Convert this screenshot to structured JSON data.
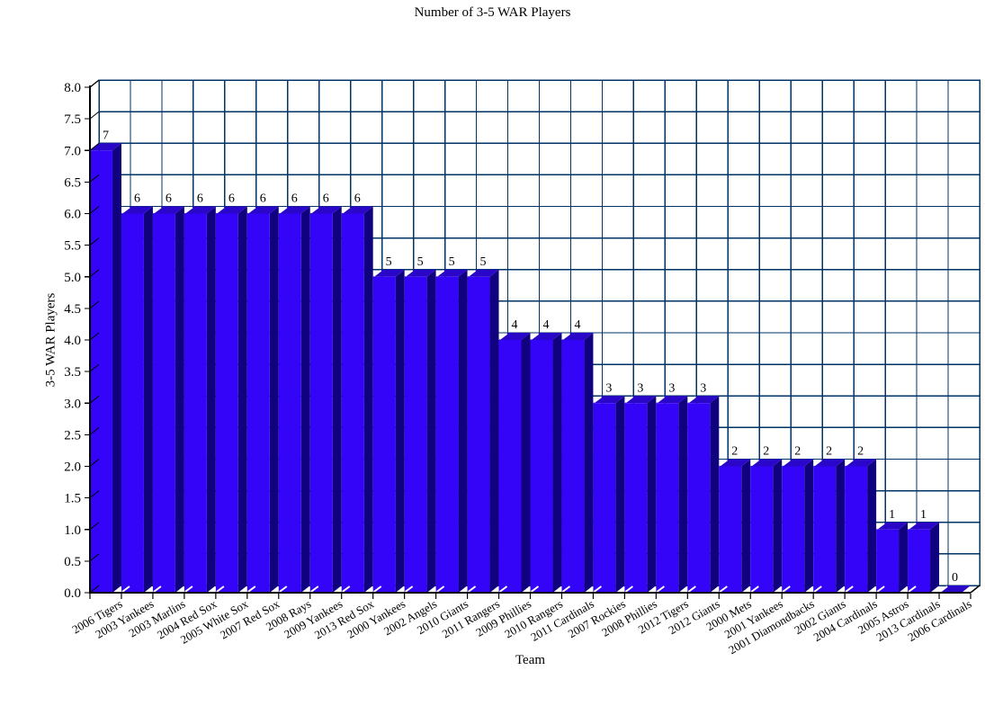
{
  "chart_data": {
    "type": "bar",
    "style": "3d-bar",
    "title": "Number of 3-5 WAR Players",
    "xlabel": "Team",
    "ylabel": "3-5 WAR Players",
    "ylim": [
      0.0,
      8.0
    ],
    "ytick_step": 0.5,
    "grid": true,
    "legend": "none",
    "categories": [
      "2006 Tigers",
      "2003 Yankees",
      "2003 Marlins",
      "2004 Red Sox",
      "2005 White Sox",
      "2007 Red Sox",
      "2008 Rays",
      "2009 Yankees",
      "2013 Red Sox",
      "2000 Yankees",
      "2002 Angels",
      "2010 Giants",
      "2011 Rangers",
      "2009 Phillies",
      "2010 Rangers",
      "2011 Cardinals",
      "2007 Rockies",
      "2008 Phillies",
      "2012 Tigers",
      "2012 Giants",
      "2000 Mets",
      "2001 Yankees",
      "2001 Diamondbacks",
      "2002 Giants",
      "2004 Cardinals",
      "2005 Astros",
      "2013 Cardinals",
      "2006 Cardinals"
    ],
    "values": [
      7,
      6,
      6,
      6,
      6,
      6,
      6,
      6,
      6,
      5,
      5,
      5,
      5,
      4,
      4,
      4,
      3,
      3,
      3,
      3,
      2,
      2,
      2,
      2,
      2,
      1,
      1,
      0
    ],
    "bar_value_labels": [
      "7",
      "6",
      "6",
      "6",
      "6",
      "6",
      "6",
      "6",
      "6",
      "5",
      "5",
      "5",
      "5",
      "4",
      "4",
      "4",
      "3",
      "3",
      "3",
      "3",
      "2",
      "2",
      "2",
      "2",
      "2",
      "1",
      "1",
      "0"
    ],
    "colors": {
      "bar_front": "#3304F8",
      "bar_top": "#2A06C8",
      "bar_side": "#10027E",
      "grid": "#003366",
      "axis": "#000000",
      "background": "#ffffff",
      "text": "#000000"
    }
  }
}
